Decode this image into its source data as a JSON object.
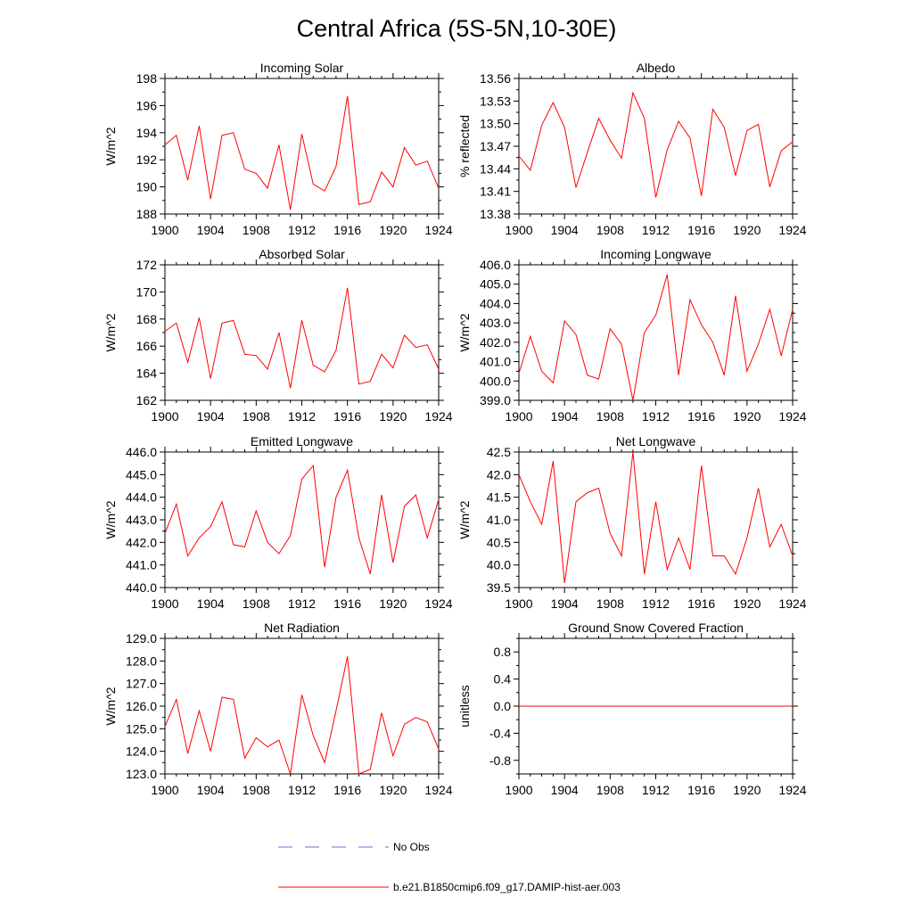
{
  "figure": {
    "title": "Central Africa (5S-5N,10-30E)"
  },
  "colors": {
    "model": "#ff0000",
    "obs": "#6b6bd6",
    "axis": "#000000"
  },
  "legend": {
    "obs_label": "No Obs",
    "model_label": "b.e21.B1850cmip6.f09_g17.DAMIP-hist-aer.003"
  },
  "chart_data": [
    {
      "type": "line",
      "title": "Incoming Solar",
      "ylabel": "W/m^2",
      "xlim": [
        1900,
        1924
      ],
      "ylim": [
        188,
        198
      ],
      "yticks": [
        "188",
        "190",
        "192",
        "194",
        "196",
        "198"
      ],
      "xticks": [
        "1900",
        "1904",
        "1908",
        "1912",
        "1916",
        "1920",
        "1924"
      ],
      "series": [
        {
          "x": [
            1900,
            1901,
            1902,
            1903,
            1904,
            1905,
            1906,
            1907,
            1908,
            1909,
            1910,
            1911,
            1912,
            1913,
            1914,
            1915,
            1916,
            1917,
            1918,
            1919,
            1920,
            1921,
            1922,
            1923,
            1924
          ],
          "values": [
            193.1,
            193.8,
            190.5,
            194.5,
            189.1,
            193.8,
            194.0,
            191.3,
            191.0,
            189.9,
            193.1,
            188.3,
            193.9,
            190.2,
            189.7,
            191.5,
            196.7,
            188.7,
            188.9,
            191.1,
            190.0,
            192.9,
            191.6,
            191.9,
            189.9
          ]
        }
      ]
    },
    {
      "type": "line",
      "title": "Albedo",
      "ylabel": "% reflected",
      "xlim": [
        1900,
        1924
      ],
      "ylim": [
        13.38,
        13.56
      ],
      "yticks": [
        "13.38",
        "13.41",
        "13.44",
        "13.47",
        "13.50",
        "13.53",
        "13.56"
      ],
      "xticks": [
        "1900",
        "1904",
        "1908",
        "1912",
        "1916",
        "1920",
        "1924"
      ],
      "series": [
        {
          "x": [
            1900,
            1901,
            1902,
            1903,
            1904,
            1905,
            1906,
            1907,
            1908,
            1909,
            1910,
            1911,
            1912,
            1913,
            1914,
            1915,
            1916,
            1917,
            1918,
            1919,
            1920,
            1921,
            1922,
            1923,
            1924
          ],
          "values": [
            13.457,
            13.438,
            13.498,
            13.528,
            13.495,
            13.415,
            13.462,
            13.507,
            13.478,
            13.454,
            13.541,
            13.507,
            13.402,
            13.465,
            13.503,
            13.481,
            13.404,
            13.519,
            13.495,
            13.431,
            13.491,
            13.499,
            13.416,
            13.464,
            13.476
          ]
        }
      ]
    },
    {
      "type": "line",
      "title": "Absorbed Solar",
      "ylabel": "W/m^2",
      "xlim": [
        1900,
        1924
      ],
      "ylim": [
        162,
        172
      ],
      "yticks": [
        "162",
        "164",
        "166",
        "168",
        "170",
        "172"
      ],
      "xticks": [
        "1900",
        "1904",
        "1908",
        "1912",
        "1916",
        "1920",
        "1924"
      ],
      "series": [
        {
          "x": [
            1900,
            1901,
            1902,
            1903,
            1904,
            1905,
            1906,
            1907,
            1908,
            1909,
            1910,
            1911,
            1912,
            1913,
            1914,
            1915,
            1916,
            1917,
            1918,
            1919,
            1920,
            1921,
            1922,
            1923,
            1924
          ],
          "values": [
            167.1,
            167.7,
            164.8,
            168.1,
            163.6,
            167.7,
            167.9,
            165.4,
            165.3,
            164.3,
            167.0,
            162.9,
            167.9,
            164.6,
            164.1,
            165.7,
            170.3,
            163.2,
            163.4,
            165.4,
            164.4,
            166.8,
            165.9,
            166.1,
            164.3
          ]
        }
      ]
    },
    {
      "type": "line",
      "title": "Incoming Longwave",
      "ylabel": "W/m^2",
      "xlim": [
        1900,
        1924
      ],
      "ylim": [
        399,
        406
      ],
      "yticks": [
        "399.0",
        "400.0",
        "401.0",
        "402.0",
        "403.0",
        "404.0",
        "405.0",
        "406.0"
      ],
      "xticks": [
        "1900",
        "1904",
        "1908",
        "1912",
        "1916",
        "1920",
        "1924"
      ],
      "series": [
        {
          "x": [
            1900,
            1901,
            1902,
            1903,
            1904,
            1905,
            1906,
            1907,
            1908,
            1909,
            1910,
            1911,
            1912,
            1913,
            1914,
            1915,
            1916,
            1917,
            1918,
            1919,
            1920,
            1921,
            1922,
            1923,
            1924
          ],
          "values": [
            400.4,
            402.3,
            400.5,
            399.9,
            403.1,
            402.4,
            400.3,
            400.1,
            402.7,
            401.9,
            399.0,
            402.5,
            403.4,
            405.5,
            400.3,
            404.2,
            402.9,
            402.0,
            400.3,
            404.4,
            400.5,
            401.9,
            403.7,
            401.3,
            403.7
          ]
        }
      ]
    },
    {
      "type": "line",
      "title": "Emitted Longwave",
      "ylabel": "W/m^2",
      "xlim": [
        1900,
        1924
      ],
      "ylim": [
        440,
        446
      ],
      "yticks": [
        "440.0",
        "441.0",
        "442.0",
        "443.0",
        "444.0",
        "445.0",
        "446.0"
      ],
      "xticks": [
        "1900",
        "1904",
        "1908",
        "1912",
        "1916",
        "1920",
        "1924"
      ],
      "series": [
        {
          "x": [
            1900,
            1901,
            1902,
            1903,
            1904,
            1905,
            1906,
            1907,
            1908,
            1909,
            1910,
            1911,
            1912,
            1913,
            1914,
            1915,
            1916,
            1917,
            1918,
            1919,
            1920,
            1921,
            1922,
            1923,
            1924
          ],
          "values": [
            442.4,
            443.7,
            441.4,
            442.2,
            442.7,
            443.8,
            441.9,
            441.8,
            443.4,
            442.0,
            441.5,
            442.3,
            444.8,
            445.4,
            440.9,
            444.0,
            445.2,
            442.2,
            440.6,
            444.1,
            441.1,
            443.6,
            444.1,
            442.2,
            443.9
          ]
        }
      ]
    },
    {
      "type": "line",
      "title": "Net Longwave",
      "ylabel": "W/m^2",
      "xlim": [
        1900,
        1924
      ],
      "ylim": [
        39.5,
        42.5
      ],
      "yticks": [
        "39.5",
        "40.0",
        "40.5",
        "41.0",
        "41.5",
        "42.0",
        "42.5"
      ],
      "xticks": [
        "1900",
        "1904",
        "1908",
        "1912",
        "1916",
        "1920",
        "1924"
      ],
      "series": [
        {
          "x": [
            1900,
            1901,
            1902,
            1903,
            1904,
            1905,
            1906,
            1907,
            1908,
            1909,
            1910,
            1911,
            1912,
            1913,
            1914,
            1915,
            1916,
            1917,
            1918,
            1919,
            1920,
            1921,
            1922,
            1923,
            1924
          ],
          "values": [
            42.0,
            41.4,
            40.9,
            42.3,
            39.6,
            41.4,
            41.6,
            41.7,
            40.7,
            40.2,
            42.5,
            39.8,
            41.4,
            39.9,
            40.6,
            39.9,
            42.2,
            40.2,
            40.2,
            39.8,
            40.6,
            41.7,
            40.4,
            40.9,
            40.2
          ]
        }
      ]
    },
    {
      "type": "line",
      "title": "Net Radiation",
      "ylabel": "W/m^2",
      "xlim": [
        1900,
        1924
      ],
      "ylim": [
        123,
        129
      ],
      "yticks": [
        "123.0",
        "124.0",
        "125.0",
        "126.0",
        "127.0",
        "128.0",
        "129.0"
      ],
      "xticks": [
        "1900",
        "1904",
        "1908",
        "1912",
        "1916",
        "1920",
        "1924"
      ],
      "series": [
        {
          "x": [
            1900,
            1901,
            1902,
            1903,
            1904,
            1905,
            1906,
            1907,
            1908,
            1909,
            1910,
            1911,
            1912,
            1913,
            1914,
            1915,
            1916,
            1917,
            1918,
            1919,
            1920,
            1921,
            1922,
            1923,
            1924
          ],
          "values": [
            125.1,
            126.3,
            123.9,
            125.8,
            124.0,
            126.4,
            126.3,
            123.7,
            124.6,
            124.2,
            124.5,
            123.0,
            126.5,
            124.7,
            123.5,
            125.8,
            128.2,
            123.0,
            123.2,
            125.7,
            123.8,
            125.2,
            125.5,
            125.3,
            124.1
          ]
        }
      ]
    },
    {
      "type": "line",
      "title": "Ground Snow Covered Fraction",
      "ylabel": "unitless",
      "xlim": [
        1900,
        1924
      ],
      "ylim": [
        -1.0,
        1.0
      ],
      "yticks": [
        "-0.8",
        "-0.4",
        "0.0",
        "0.4",
        "0.8"
      ],
      "ytick_values": [
        -0.8,
        -0.4,
        0.0,
        0.4,
        0.8
      ],
      "xticks": [
        "1900",
        "1904",
        "1908",
        "1912",
        "1916",
        "1920",
        "1924"
      ],
      "series": [
        {
          "x": [
            1900,
            1901,
            1902,
            1903,
            1904,
            1905,
            1906,
            1907,
            1908,
            1909,
            1910,
            1911,
            1912,
            1913,
            1914,
            1915,
            1916,
            1917,
            1918,
            1919,
            1920,
            1921,
            1922,
            1923,
            1924
          ],
          "values": [
            0,
            0,
            0,
            0,
            0,
            0,
            0,
            0,
            0,
            0,
            0,
            0,
            0,
            0,
            0,
            0,
            0,
            0,
            0,
            0,
            0,
            0,
            0,
            0,
            0
          ]
        }
      ]
    }
  ]
}
